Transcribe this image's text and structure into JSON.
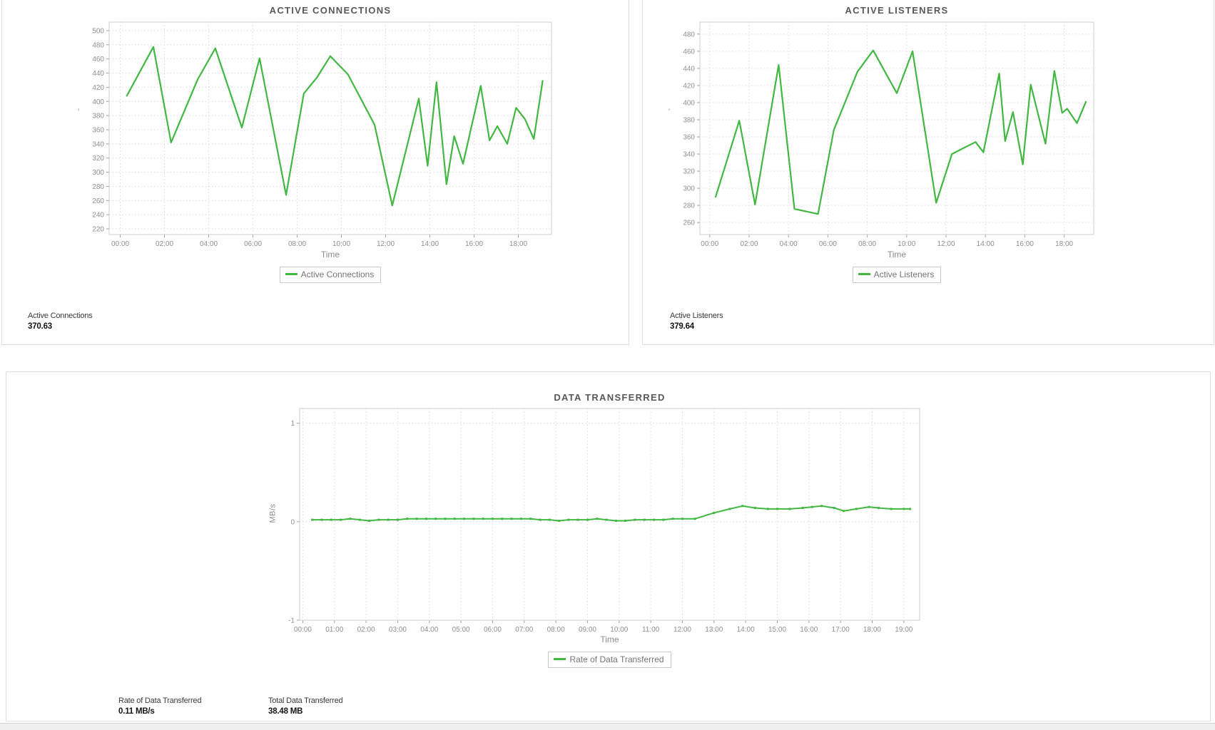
{
  "colors": {
    "line_green": "#41b841",
    "grid": "#dcdcdc",
    "plot_border": "#cfcfcf",
    "tick": "#a0a0a0"
  },
  "chart_data": [
    {
      "type": "line",
      "title": "ACTIVE CONNECTIONS",
      "xlabel": "Time",
      "ylabel": "'",
      "legend_label": "Active Connections",
      "legend_position": "bottom",
      "grid": true,
      "markers": false,
      "line_color": "#41b841",
      "x_tick_hours": [
        0,
        2,
        4,
        6,
        8,
        10,
        12,
        14,
        16,
        18
      ],
      "x_tick_labels": [
        "00:00",
        "02:00",
        "04:00",
        "06:00",
        "08:00",
        "10:00",
        "12:00",
        "14:00",
        "16:00",
        "18:00"
      ],
      "x_range_hours": [
        -0.5,
        19.5
      ],
      "y_ticks": [
        220,
        240,
        260,
        280,
        300,
        320,
        340,
        360,
        380,
        400,
        420,
        440,
        460,
        480,
        500
      ],
      "y_range": [
        212,
        512
      ],
      "series": [
        {
          "name": "Active Connections",
          "points": [
            [
              0.3,
              408
            ],
            [
              1.5,
              477
            ],
            [
              2.3,
              342
            ],
            [
              3.5,
              431
            ],
            [
              4.3,
              475
            ],
            [
              5.5,
              363
            ],
            [
              6.3,
              461
            ],
            [
              7.5,
              268
            ],
            [
              8.3,
              411
            ],
            [
              8.9,
              434
            ],
            [
              9.5,
              464
            ],
            [
              10.3,
              438
            ],
            [
              11.5,
              367
            ],
            [
              12.3,
              253
            ],
            [
              13.5,
              404
            ],
            [
              13.9,
              309
            ],
            [
              14.3,
              427
            ],
            [
              14.75,
              283
            ],
            [
              15.1,
              351
            ],
            [
              15.5,
              312
            ],
            [
              16.3,
              422
            ],
            [
              16.7,
              345
            ],
            [
              17.05,
              365
            ],
            [
              17.5,
              340
            ],
            [
              17.9,
              391
            ],
            [
              18.3,
              375
            ],
            [
              18.7,
              347
            ],
            [
              19.1,
              429
            ]
          ]
        }
      ],
      "stats": [
        {
          "label": "Active Connections",
          "value": "370.63"
        }
      ]
    },
    {
      "type": "line",
      "title": "ACTIVE LISTENERS",
      "xlabel": "Time",
      "ylabel": "'",
      "legend_label": "Active Listeners",
      "legend_position": "bottom",
      "grid": true,
      "markers": false,
      "line_color": "#41b841",
      "x_tick_hours": [
        0,
        2,
        4,
        6,
        8,
        10,
        12,
        14,
        16,
        18
      ],
      "x_tick_labels": [
        "00:00",
        "02:00",
        "04:00",
        "06:00",
        "08:00",
        "10:00",
        "12:00",
        "14:00",
        "16:00",
        "18:00"
      ],
      "x_range_hours": [
        -0.5,
        19.5
      ],
      "y_ticks": [
        260,
        280,
        300,
        320,
        340,
        360,
        380,
        400,
        420,
        440,
        460,
        480
      ],
      "y_range": [
        246,
        494
      ],
      "series": [
        {
          "name": "Active Listeners",
          "points": [
            [
              0.3,
              290
            ],
            [
              1.5,
              379
            ],
            [
              2.3,
              281
            ],
            [
              3.5,
              444
            ],
            [
              4.3,
              276
            ],
            [
              4.7,
              274
            ],
            [
              5.5,
              270
            ],
            [
              6.3,
              368
            ],
            [
              7.5,
              436
            ],
            [
              8.3,
              461
            ],
            [
              9.5,
              411
            ],
            [
              10.3,
              460
            ],
            [
              11.5,
              283
            ],
            [
              12.3,
              340
            ],
            [
              13.5,
              354
            ],
            [
              13.9,
              342
            ],
            [
              14.7,
              434
            ],
            [
              15.0,
              355
            ],
            [
              15.4,
              389
            ],
            [
              15.9,
              328
            ],
            [
              16.3,
              421
            ],
            [
              17.05,
              352
            ],
            [
              17.5,
              437
            ],
            [
              17.9,
              388
            ],
            [
              18.15,
              393
            ],
            [
              18.65,
              376
            ],
            [
              19.1,
              401
            ]
          ]
        }
      ],
      "stats": [
        {
          "label": "Active Listeners",
          "value": "379.64"
        }
      ]
    },
    {
      "type": "line",
      "title": "DATA TRANSFERRED",
      "xlabel": "Time",
      "ylabel": "MB/s",
      "legend_label": "Rate of Data Transferred",
      "legend_position": "bottom",
      "grid": true,
      "markers": true,
      "line_color": "#41b841",
      "x_tick_hours": [
        0,
        1,
        2,
        3,
        4,
        5,
        6,
        7,
        8,
        9,
        10,
        11,
        12,
        13,
        14,
        15,
        16,
        17,
        18,
        19
      ],
      "x_tick_labels": [
        "00:00",
        "01:00",
        "02:00",
        "03:00",
        "04:00",
        "05:00",
        "06:00",
        "07:00",
        "08:00",
        "09:00",
        "10:00",
        "11:00",
        "12:00",
        "13:00",
        "14:00",
        "15:00",
        "16:00",
        "17:00",
        "18:00",
        "19:00"
      ],
      "x_range_hours": [
        -0.1,
        19.5
      ],
      "y_ticks": [
        -1,
        0,
        1
      ],
      "y_range": [
        -1,
        1.15
      ],
      "series": [
        {
          "name": "Rate of Data Transferred",
          "points": [
            [
              0.3,
              0.02
            ],
            [
              0.6,
              0.02
            ],
            [
              0.9,
              0.02
            ],
            [
              1.2,
              0.02
            ],
            [
              1.5,
              0.03
            ],
            [
              1.8,
              0.02
            ],
            [
              2.1,
              0.01
            ],
            [
              2.4,
              0.02
            ],
            [
              2.7,
              0.02
            ],
            [
              3.0,
              0.02
            ],
            [
              3.3,
              0.03
            ],
            [
              3.6,
              0.03
            ],
            [
              3.9,
              0.03
            ],
            [
              4.2,
              0.03
            ],
            [
              4.5,
              0.03
            ],
            [
              4.8,
              0.03
            ],
            [
              5.1,
              0.03
            ],
            [
              5.4,
              0.03
            ],
            [
              5.7,
              0.03
            ],
            [
              6.0,
              0.03
            ],
            [
              6.3,
              0.03
            ],
            [
              6.6,
              0.03
            ],
            [
              6.9,
              0.03
            ],
            [
              7.2,
              0.03
            ],
            [
              7.5,
              0.02
            ],
            [
              7.8,
              0.02
            ],
            [
              8.1,
              0.01
            ],
            [
              8.4,
              0.02
            ],
            [
              8.7,
              0.02
            ],
            [
              9.0,
              0.02
            ],
            [
              9.3,
              0.03
            ],
            [
              9.6,
              0.02
            ],
            [
              9.9,
              0.01
            ],
            [
              10.2,
              0.01
            ],
            [
              10.5,
              0.02
            ],
            [
              10.8,
              0.02
            ],
            [
              11.1,
              0.02
            ],
            [
              11.4,
              0.02
            ],
            [
              11.7,
              0.03
            ],
            [
              12.0,
              0.03
            ],
            [
              12.4,
              0.03
            ],
            [
              13.0,
              0.09
            ],
            [
              13.5,
              0.13
            ],
            [
              13.9,
              0.16
            ],
            [
              14.3,
              0.14
            ],
            [
              14.7,
              0.13
            ],
            [
              15.0,
              0.13
            ],
            [
              15.4,
              0.13
            ],
            [
              15.8,
              0.14
            ],
            [
              16.1,
              0.15
            ],
            [
              16.4,
              0.16
            ],
            [
              16.8,
              0.14
            ],
            [
              17.1,
              0.11
            ],
            [
              17.5,
              0.13
            ],
            [
              17.9,
              0.15
            ],
            [
              18.2,
              0.14
            ],
            [
              18.6,
              0.13
            ],
            [
              19.0,
              0.13
            ],
            [
              19.2,
              0.13
            ]
          ]
        }
      ],
      "stats": [
        {
          "label": "Rate of Data Transferred",
          "value": "0.11 MB/s"
        },
        {
          "label": "Total Data Transferred",
          "value": "38.48 MB"
        }
      ]
    }
  ]
}
